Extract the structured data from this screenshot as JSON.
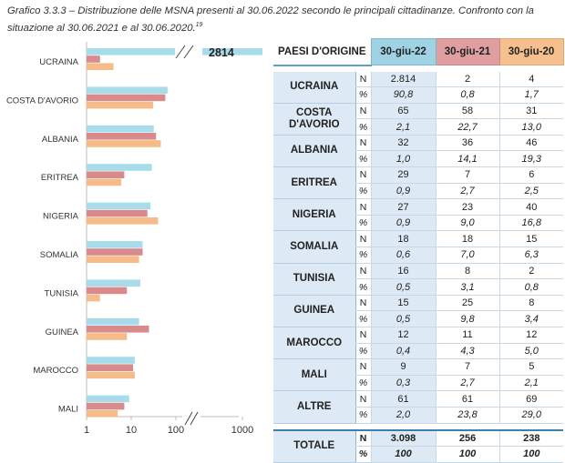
{
  "caption": {
    "text": "Grafico 3.3.3 – Distribuzione delle MSNA presenti al 30.06.2022 secondo le principali cittadinanze. Confronto con la situazione al 30.06.2021 e al 30.06.2020.",
    "footnote": "19"
  },
  "colors": {
    "series_2022": "#a8dcea",
    "series_2021": "#d98b8b",
    "series_2020": "#f5bc8a",
    "header_2022": "#9fd3e3",
    "header_2021": "#df9fa0",
    "header_2020": "#f6c08e",
    "country_bg": "#dde9f4"
  },
  "chart_data": [
    {
      "type": "bar",
      "orientation": "horizontal",
      "scale": "log",
      "axis_break": true,
      "categories": [
        "UCRAINA",
        "COSTA D'AVORIO",
        "ALBANIA",
        "ERITREA",
        "NIGERIA",
        "SOMALIA",
        "TUNISIA",
        "GUINEA",
        "MAROCCO",
        "MALI"
      ],
      "series": [
        {
          "values": [
            2814,
            65,
            32,
            29,
            27,
            18,
            16,
            15,
            12,
            9
          ]
        },
        {
          "values": [
            2,
            58,
            36,
            7,
            23,
            18,
            8,
            25,
            11,
            7
          ]
        },
        {
          "values": [
            4,
            31,
            46,
            6,
            40,
            15,
            2,
            8,
            12,
            5
          ]
        }
      ],
      "bar_label": "2814",
      "xticks": [
        "1",
        "10",
        "100",
        "1000"
      ],
      "xlim": [
        1,
        1800
      ]
    },
    {
      "type": "table",
      "header": {
        "origin": "PAESI D'ORIGINE",
        "cols": [
          "30-giu-22",
          "30-giu-21",
          "30-giu-20"
        ]
      },
      "rows": [
        {
          "country": "UCRAINA",
          "n": [
            "2.814",
            "2",
            "4"
          ],
          "pct": [
            "90,8",
            "0,8",
            "1,7"
          ]
        },
        {
          "country": "COSTA D'AVORIO",
          "n": [
            "65",
            "58",
            "31"
          ],
          "pct": [
            "2,1",
            "22,7",
            "13,0"
          ]
        },
        {
          "country": "ALBANIA",
          "n": [
            "32",
            "36",
            "46"
          ],
          "pct": [
            "1,0",
            "14,1",
            "19,3"
          ]
        },
        {
          "country": "ERITREA",
          "n": [
            "29",
            "7",
            "6"
          ],
          "pct": [
            "0,9",
            "2,7",
            "2,5"
          ]
        },
        {
          "country": "NIGERIA",
          "n": [
            "27",
            "23",
            "40"
          ],
          "pct": [
            "0,9",
            "9,0",
            "16,8"
          ]
        },
        {
          "country": "SOMALIA",
          "n": [
            "18",
            "18",
            "15"
          ],
          "pct": [
            "0,6",
            "7,0",
            "6,3"
          ]
        },
        {
          "country": "TUNISIA",
          "n": [
            "16",
            "8",
            "2"
          ],
          "pct": [
            "0,5",
            "3,1",
            "0,8"
          ]
        },
        {
          "country": "GUINEA",
          "n": [
            "15",
            "25",
            "8"
          ],
          "pct": [
            "0,5",
            "9,8",
            "3,4"
          ]
        },
        {
          "country": "MAROCCO",
          "n": [
            "12",
            "11",
            "12"
          ],
          "pct": [
            "0,4",
            "4,3",
            "5,0"
          ]
        },
        {
          "country": "MALI",
          "n": [
            "9",
            "7",
            "5"
          ],
          "pct": [
            "0,3",
            "2,7",
            "2,1"
          ]
        },
        {
          "country": "ALTRE",
          "n": [
            "61",
            "61",
            "69"
          ],
          "pct": [
            "2,0",
            "23,8",
            "29,0"
          ]
        }
      ],
      "total": {
        "label": "TOTALE",
        "n": [
          "3.098",
          "256",
          "238"
        ],
        "pct": [
          "100",
          "100",
          "100"
        ]
      },
      "n_label": "N",
      "pct_label": "%"
    }
  ]
}
